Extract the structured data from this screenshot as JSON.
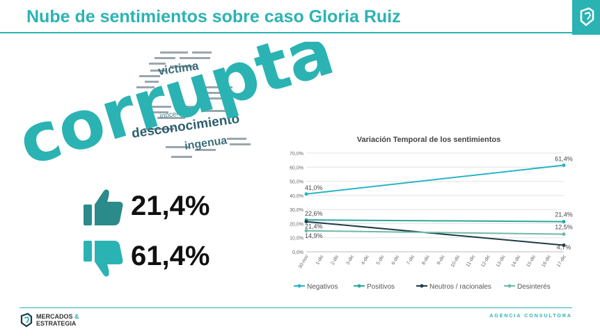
{
  "header": {
    "title": "Nube de sentimientos sobre caso Gloria Ruiz"
  },
  "word_cloud": {
    "main_word": "corrupta",
    "words": [
      "victima",
      "desconocimiento",
      "ingenua",
      "inocente"
    ]
  },
  "stats": {
    "positive": {
      "icon": "thumbs-up-icon",
      "value": "21,4%"
    },
    "negative": {
      "icon": "thumbs-down-icon",
      "value": "61,4%"
    }
  },
  "footer": {
    "brand_line1": "MERCADOS",
    "brand_amp": "&",
    "brand_line2": "ESTRATEGIA",
    "tagline": "AGENCIA CONSULTORA"
  },
  "colors": {
    "accent": "#2bb3b3",
    "dark": "#1f3b46"
  },
  "chart_data": {
    "type": "line",
    "title": "Variación Temporal de los sentimientos",
    "categories": [
      "30-nov",
      "1-dic",
      "2-dic",
      "3-dic",
      "4-dic",
      "5-dic",
      "6-dic",
      "7-dic",
      "8-dic",
      "9-dic",
      "10-dic",
      "11-dic",
      "12-dic",
      "13-dic",
      "14-dic",
      "15-dic",
      "16-dic",
      "17-dic"
    ],
    "yticks": [
      "0,0%",
      "10,0%",
      "20,0%",
      "30,0%",
      "40,0%",
      "50,0%",
      "60,0%",
      "70,0%"
    ],
    "ylim": [
      0,
      70
    ],
    "grid": true,
    "legend_position": "bottom",
    "series": [
      {
        "name": "Negativos",
        "color": "#27b5c4",
        "points": [
          [
            0,
            41.0
          ],
          [
            17,
            61.4
          ]
        ],
        "labels": [
          "41,0%",
          "61,4%"
        ]
      },
      {
        "name": "Positivos",
        "color": "#2aa7a0",
        "points": [
          [
            0,
            22.6
          ],
          [
            17,
            21.4
          ]
        ],
        "labels": [
          "22,6%",
          "21,4%"
        ]
      },
      {
        "name": "Neutros / racionales",
        "color": "#1f3b46",
        "points": [
          [
            0,
            21.4
          ],
          [
            17,
            4.7
          ]
        ],
        "labels": [
          "21,4%",
          "4,7%"
        ]
      },
      {
        "name": "Desinterés",
        "color": "#6fb9a7",
        "points": [
          [
            0,
            14.9
          ],
          [
            17,
            12.5
          ]
        ],
        "labels": [
          "14,9%",
          "12,5%"
        ]
      }
    ]
  }
}
